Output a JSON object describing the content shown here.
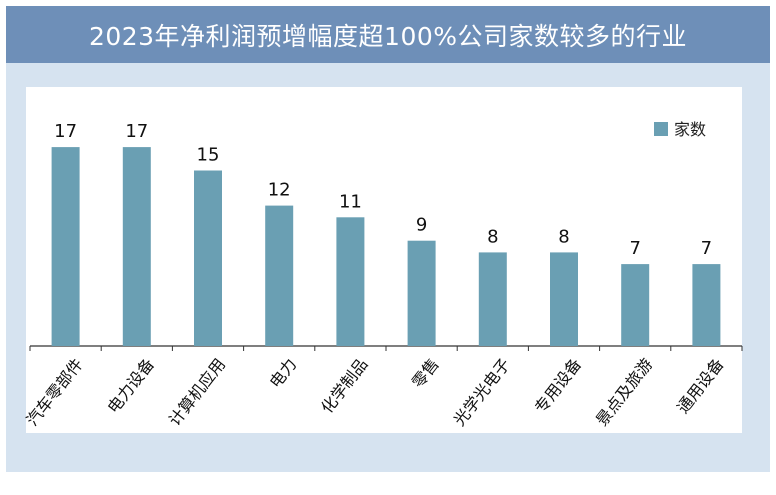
{
  "title": "2023年净利润预增幅度超100%公司家数较多的行业",
  "colors": {
    "bar": "#6a9fb3",
    "title_bg": "#6e8fb8",
    "panel_bg": "#d6e3f0"
  },
  "chart_data": {
    "type": "bar",
    "title": "2023年净利润预增幅度超100%公司家数较多的行业",
    "categories": [
      "汽车零部件",
      "电力设备",
      "计算机应用",
      "电力",
      "化学制品",
      "零售",
      "光学光电子",
      "专用设备",
      "景点及旅游",
      "通用设备"
    ],
    "series": [
      {
        "name": "家数",
        "values": [
          17,
          17,
          15,
          12,
          11,
          9,
          8,
          8,
          7,
          7
        ]
      }
    ],
    "ylim": [
      0,
      20
    ],
    "grid": false,
    "legend": "top-right",
    "data_labels": true
  }
}
